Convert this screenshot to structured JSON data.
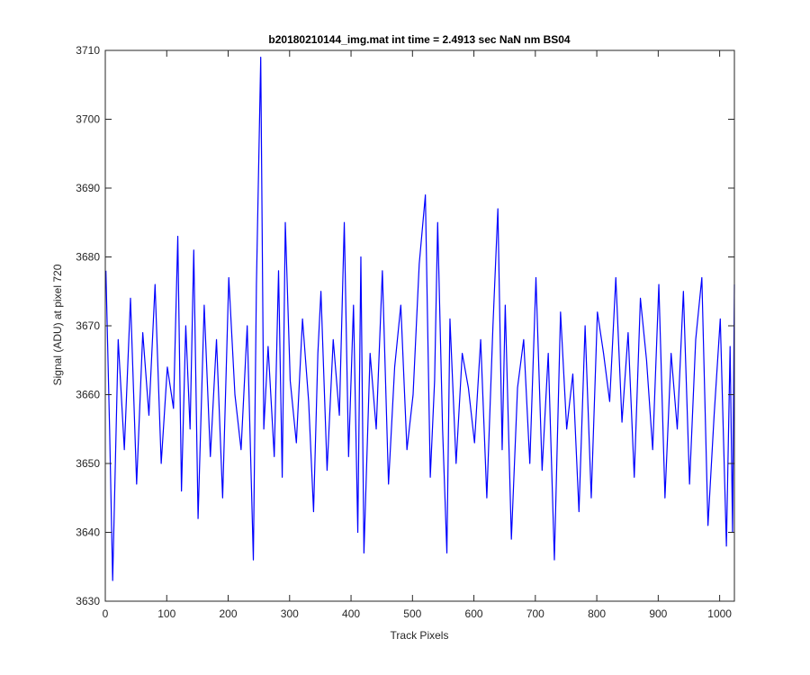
{
  "chart_data": {
    "type": "line",
    "title": "b20180210144_img.mat int time = 2.4913 sec  NaN nm BS04",
    "xlabel": "Track Pixels",
    "ylabel": "Signal (ADU) at pixel 720",
    "xlim": [
      0,
      1024
    ],
    "ylim": [
      3630,
      3710
    ],
    "xticks": [
      0,
      100,
      200,
      300,
      400,
      500,
      600,
      700,
      800,
      900,
      1000
    ],
    "yticks": [
      3630,
      3640,
      3650,
      3660,
      3670,
      3680,
      3690,
      3700,
      3710
    ],
    "grid": false,
    "legend": "none",
    "series": [
      {
        "color": "#0000ff",
        "x": [
          1,
          7,
          12,
          21,
          31,
          41,
          51,
          61,
          71,
          81,
          91,
          101,
          111,
          118,
          124,
          131,
          138,
          144,
          151,
          161,
          171,
          181,
          191,
          201,
          211,
          221,
          231,
          241,
          246,
          253,
          258,
          265,
          275,
          282,
          288,
          293,
          301,
          311,
          321,
          331,
          339,
          346,
          351,
          361,
          371,
          381,
          389,
          396,
          404,
          411,
          416,
          421,
          431,
          441,
          451,
          461,
          471,
          481,
          491,
          501,
          511,
          521,
          529,
          536,
          541,
          549,
          556,
          561,
          571,
          581,
          591,
          601,
          611,
          621,
          631,
          639,
          646,
          651,
          661,
          671,
          681,
          691,
          701,
          711,
          721,
          731,
          741,
          751,
          761,
          771,
          781,
          791,
          801,
          811,
          821,
          831,
          841,
          851,
          861,
          871,
          881,
          891,
          901,
          911,
          921,
          931,
          941,
          951,
          961,
          971,
          981,
          991,
          1001,
          1011,
          1017,
          1021,
          1024
        ],
        "y": [
          3678,
          3655,
          3633,
          3668,
          3652,
          3674,
          3647,
          3669,
          3657,
          3676,
          3650,
          3664,
          3658,
          3683,
          3646,
          3670,
          3655,
          3681,
          3642,
          3673,
          3651,
          3668,
          3645,
          3677,
          3660,
          3652,
          3670,
          3636,
          3676,
          3709,
          3655,
          3667,
          3651,
          3678,
          3648,
          3685,
          3662,
          3653,
          3671,
          3659,
          3643,
          3666,
          3675,
          3649,
          3668,
          3657,
          3685,
          3651,
          3673,
          3640,
          3680,
          3637,
          3666,
          3655,
          3678,
          3647,
          3664,
          3673,
          3652,
          3660,
          3679,
          3689,
          3648,
          3662,
          3685,
          3655,
          3637,
          3671,
          3650,
          3666,
          3661,
          3653,
          3668,
          3645,
          3670,
          3687,
          3652,
          3673,
          3639,
          3661,
          3668,
          3650,
          3677,
          3649,
          3666,
          3636,
          3672,
          3655,
          3663,
          3643,
          3670,
          3645,
          3672,
          3666,
          3659,
          3677,
          3656,
          3669,
          3648,
          3674,
          3665,
          3652,
          3676,
          3645,
          3666,
          3655,
          3675,
          3647,
          3668,
          3677,
          3641,
          3657,
          3671,
          3638,
          3667,
          3640,
          3676
        ]
      }
    ]
  }
}
